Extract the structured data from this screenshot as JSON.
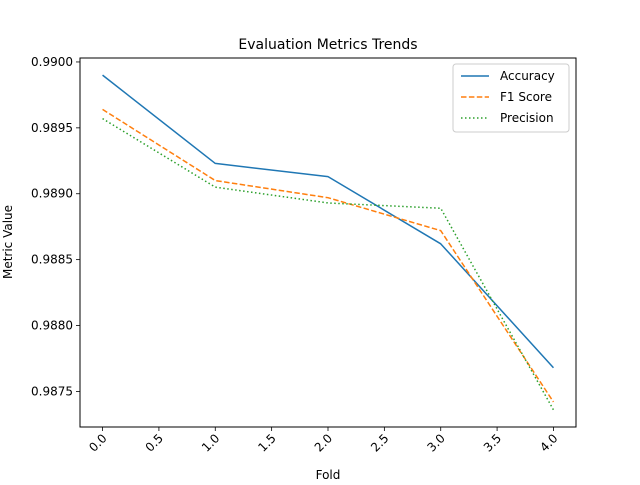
{
  "chart_data": {
    "type": "line",
    "title": "Evaluation Metrics Trends",
    "xlabel": "Fold",
    "ylabel": "Metric Value",
    "x": [
      0,
      1,
      2,
      3,
      4
    ],
    "xlim": [
      -0.2,
      4.2
    ],
    "ylim": [
      0.98723,
      0.99003
    ],
    "xticks": [
      0.0,
      0.5,
      1.0,
      1.5,
      2.0,
      2.5,
      3.0,
      3.5,
      4.0
    ],
    "xtick_labels": [
      "0.0",
      "0.5",
      "1.0",
      "1.5",
      "2.0",
      "2.5",
      "3.0",
      "3.5",
      "4.0"
    ],
    "yticks": [
      0.9875,
      0.988,
      0.9885,
      0.989,
      0.9895,
      0.99
    ],
    "ytick_labels": [
      "0.9875",
      "0.9880",
      "0.9885",
      "0.9890",
      "0.9895",
      "0.9900"
    ],
    "xtick_rotation": 45,
    "grid": false,
    "legend_position": "top-right",
    "series": [
      {
        "name": "Accuracy",
        "values": [
          0.9899,
          0.98923,
          0.98913,
          0.98862,
          0.98768
        ],
        "color": "#1f77b4",
        "style": "solid"
      },
      {
        "name": "F1 Score",
        "values": [
          0.98964,
          0.9891,
          0.98897,
          0.98872,
          0.98742
        ],
        "color": "#ff7f0e",
        "style": "dashed"
      },
      {
        "name": "Precision",
        "values": [
          0.98957,
          0.98905,
          0.98893,
          0.98889,
          0.98736
        ],
        "color": "#2ca02c",
        "style": "dotted"
      }
    ]
  }
}
